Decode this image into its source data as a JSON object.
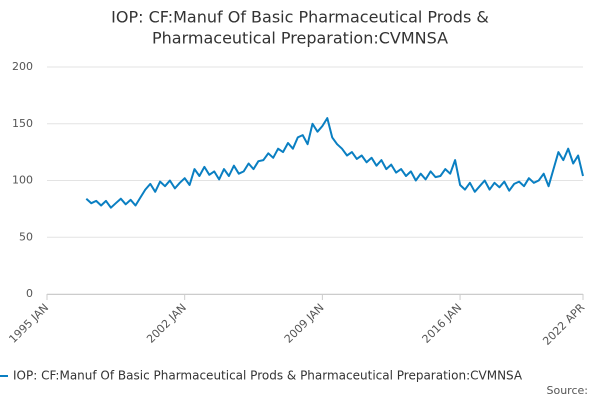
{
  "chart_data": {
    "type": "line",
    "title": [
      "IOP: CF:Manuf Of Basic Pharmaceutical Prods &",
      "Pharmaceutical Preparation:CVMNSA"
    ],
    "x": [
      "1997-01",
      "1997-04",
      "1997-07",
      "1997-10",
      "1998-01",
      "1998-04",
      "1998-07",
      "1998-10",
      "1999-01",
      "1999-04",
      "1999-07",
      "1999-10",
      "2000-01",
      "2000-04",
      "2000-07",
      "2000-10",
      "2001-01",
      "2001-04",
      "2001-07",
      "2001-10",
      "2002-01",
      "2002-04",
      "2002-07",
      "2002-10",
      "2003-01",
      "2003-04",
      "2003-07",
      "2003-10",
      "2004-01",
      "2004-04",
      "2004-07",
      "2004-10",
      "2005-01",
      "2005-04",
      "2005-07",
      "2005-10",
      "2006-01",
      "2006-04",
      "2006-07",
      "2006-10",
      "2007-01",
      "2007-04",
      "2007-07",
      "2007-10",
      "2008-01",
      "2008-04",
      "2008-07",
      "2008-10",
      "2009-01",
      "2009-04",
      "2009-07",
      "2009-10",
      "2010-01",
      "2010-04",
      "2010-07",
      "2010-10",
      "2011-01",
      "2011-04",
      "2011-07",
      "2011-10",
      "2012-01",
      "2012-04",
      "2012-07",
      "2012-10",
      "2013-01",
      "2013-04",
      "2013-07",
      "2013-10",
      "2014-01",
      "2014-04",
      "2014-07",
      "2014-10",
      "2015-01",
      "2015-04",
      "2015-07",
      "2015-10",
      "2016-01",
      "2016-04",
      "2016-07",
      "2016-10",
      "2017-01",
      "2017-04",
      "2017-07",
      "2017-10",
      "2018-01",
      "2018-04",
      "2018-07",
      "2018-10",
      "2019-01",
      "2019-04",
      "2019-07",
      "2019-10",
      "2020-01",
      "2020-04",
      "2020-07",
      "2020-10",
      "2021-01",
      "2021-04",
      "2021-07",
      "2021-10",
      "2022-01",
      "2022-04"
    ],
    "series": [
      {
        "name": "IOP: CF:Manuf Of Basic Pharmaceutical Prods & Pharmaceutical Preparation:CVMNSA",
        "color": "#0a7fc2",
        "values": [
          84,
          80,
          82,
          78,
          82,
          76,
          80,
          84,
          79,
          83,
          78,
          85,
          92,
          97,
          90,
          99,
          95,
          100,
          93,
          98,
          102,
          96,
          110,
          104,
          112,
          105,
          108,
          101,
          110,
          104,
          113,
          106,
          108,
          115,
          110,
          117,
          118,
          124,
          120,
          128,
          125,
          133,
          128,
          138,
          140,
          132,
          150,
          143,
          148,
          155,
          138,
          132,
          128,
          122,
          125,
          119,
          122,
          116,
          120,
          113,
          118,
          110,
          114,
          107,
          110,
          104,
          108,
          100,
          106,
          101,
          108,
          103,
          104,
          110,
          106,
          118,
          96,
          92,
          98,
          90,
          95,
          100,
          92,
          98,
          94,
          99,
          91,
          97,
          99,
          95,
          102,
          98,
          100,
          106,
          95,
          110,
          125,
          118,
          128,
          115,
          122,
          104
        ]
      }
    ],
    "xlim": [
      "1995-01",
      "2022-04"
    ],
    "xticks": [
      {
        "value": "1995-01",
        "label": "1995 JAN"
      },
      {
        "value": "2002-01",
        "label": "2002 JAN"
      },
      {
        "value": "2009-01",
        "label": "2009 JAN"
      },
      {
        "value": "2016-01",
        "label": "2016 JAN"
      },
      {
        "value": "2022-04",
        "label": "2022 APR"
      }
    ],
    "ylim": [
      0,
      200
    ],
    "yticks": [
      0,
      50,
      100,
      150,
      200
    ],
    "grid": true,
    "source": "Source:"
  }
}
